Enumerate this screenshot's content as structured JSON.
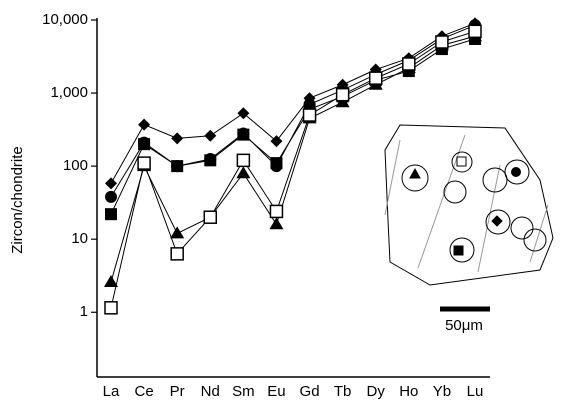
{
  "chart_data": {
    "type": "line",
    "log_y": true,
    "ylabel": "Zircon/chondrite",
    "categories": [
      "La",
      "Ce",
      "Pr",
      "Nd",
      "Sm",
      "Eu",
      "Gd",
      "Tb",
      "Dy",
      "Ho",
      "Yb",
      "Lu"
    ],
    "ylim": [
      0.13,
      10000
    ],
    "yticks": [
      {
        "value": 10000,
        "label": "10,000"
      },
      {
        "value": 1000,
        "label": "1,000"
      },
      100,
      10,
      1
    ],
    "series": [
      {
        "marker": "diamond",
        "color": "#000000",
        "values": [
          58,
          370,
          240,
          260,
          530,
          220,
          850,
          1300,
          2100,
          3000,
          6000,
          9000
        ]
      },
      {
        "marker": "circle",
        "color": "#000000",
        "values": [
          38,
          210,
          100,
          125,
          280,
          100,
          700,
          1100,
          1800,
          2800,
          5500,
          8500
        ]
      },
      {
        "marker": "square",
        "color": "#000000",
        "values": [
          22,
          200,
          100,
          120,
          270,
          110,
          600,
          900,
          1500,
          2000,
          4000,
          5500
        ]
      },
      {
        "marker": "triangle",
        "color": "#000000",
        "values": [
          2.6,
          100,
          12,
          20,
          80,
          16,
          450,
          750,
          1300,
          2200,
          4500,
          6000
        ]
      },
      {
        "marker": "open-square",
        "color": "#000000",
        "values": [
          1.15,
          110,
          6.3,
          20,
          120,
          24,
          500,
          950,
          1600,
          2500,
          5000,
          7000
        ]
      }
    ],
    "inset_scale_label": "50μm"
  }
}
